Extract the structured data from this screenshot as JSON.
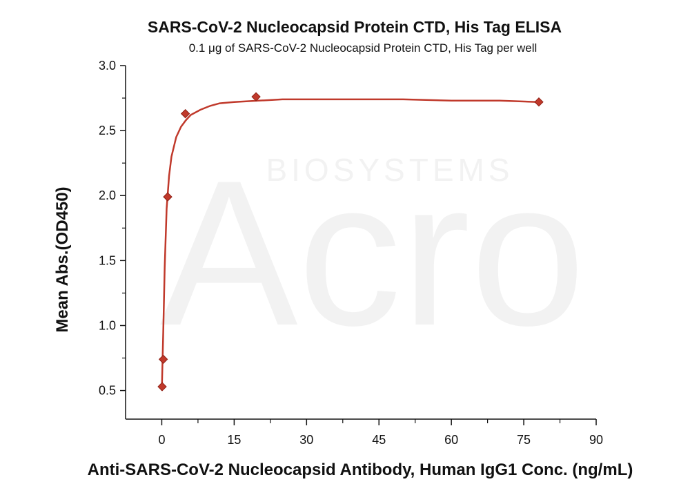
{
  "chart_data": {
    "type": "scatter",
    "title": "SARS-CoV-2 Nucleocapsid Protein CTD, His Tag ELISA",
    "subtitle": "0.1 μg of SARS-CoV-2 Nucleocapsid Protein CTD, His Tag per well",
    "xlabel": "Anti-SARS-CoV-2 Nucleocapsid Antibody, Human IgG1 Conc. (ng/mL)",
    "ylabel": "Mean Abs.(OD450)",
    "xlim": [
      -7.5,
      90
    ],
    "ylim": [
      0.28,
      3.0
    ],
    "xticks": [
      0,
      15,
      30,
      45,
      60,
      75,
      90
    ],
    "yticks": [
      0.5,
      1.0,
      1.5,
      2.0,
      2.5,
      3.0
    ],
    "xtick_labels": [
      "0",
      "15",
      "30",
      "45",
      "60",
      "75",
      "90"
    ],
    "ytick_labels": [
      "0.5",
      "1.0",
      "1.5",
      "2.0",
      "2.5",
      "3.0"
    ],
    "grid": false,
    "series": [
      {
        "marker": "diamond",
        "color": "#c0392b",
        "x": [
          0.08,
          0.31,
          1.22,
          4.88,
          19.53,
          78.13
        ],
        "y": [
          0.53,
          0.74,
          1.99,
          2.63,
          2.76,
          2.72
        ]
      }
    ],
    "fit_curve": {
      "color": "#c0392b",
      "x": [
        0,
        0.3,
        0.6,
        1,
        1.5,
        2,
        3,
        4,
        5,
        6,
        8,
        10,
        12,
        15,
        20,
        25,
        30,
        40,
        50,
        60,
        70,
        78
      ],
      "y": [
        0.5,
        0.95,
        1.45,
        1.9,
        2.15,
        2.3,
        2.45,
        2.53,
        2.58,
        2.62,
        2.66,
        2.69,
        2.71,
        2.72,
        2.73,
        2.74,
        2.74,
        2.74,
        2.74,
        2.73,
        2.73,
        2.72
      ]
    }
  },
  "watermark": {
    "brand": "Acro",
    "tagline": "BIOSYSTEMS"
  }
}
